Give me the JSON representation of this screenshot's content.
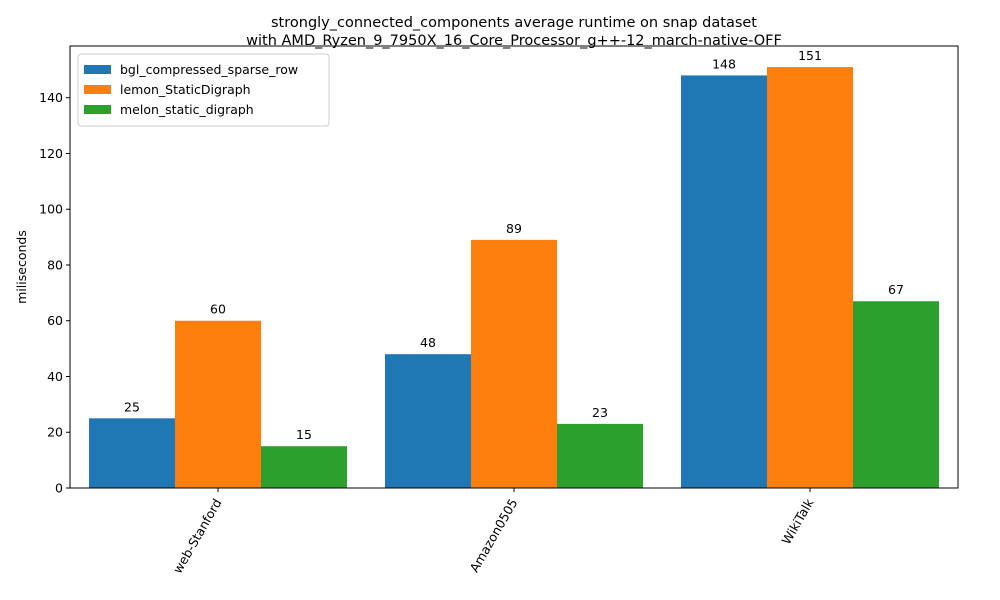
{
  "chart_data": {
    "type": "bar",
    "title": "strongly_connected_components average runtime on snap dataset\nwith AMD_Ryzen_9_7950X_16_Core_Processor_g++-12_march-native-OFF",
    "xlabel": "",
    "ylabel": "miliseconds",
    "categories": [
      "web-Stanford",
      "Amazon0505",
      "WikiTalk"
    ],
    "series": [
      {
        "name": "bgl_compressed_sparse_row",
        "color": "#1f77b4",
        "values": [
          25,
          48,
          148
        ]
      },
      {
        "name": "lemon_StaticDigraph",
        "color": "#ff7f0e",
        "values": [
          60,
          89,
          151
        ]
      },
      {
        "name": "melon_static_digraph",
        "color": "#2ca02c",
        "values": [
          15,
          23,
          67
        ]
      }
    ],
    "ylim": [
      0,
      158.55
    ],
    "yticks": [
      0,
      20,
      40,
      60,
      80,
      100,
      120,
      140
    ],
    "xtick_rotation": -60,
    "grid": false,
    "legend_position": "upper left",
    "data_labels": true
  }
}
